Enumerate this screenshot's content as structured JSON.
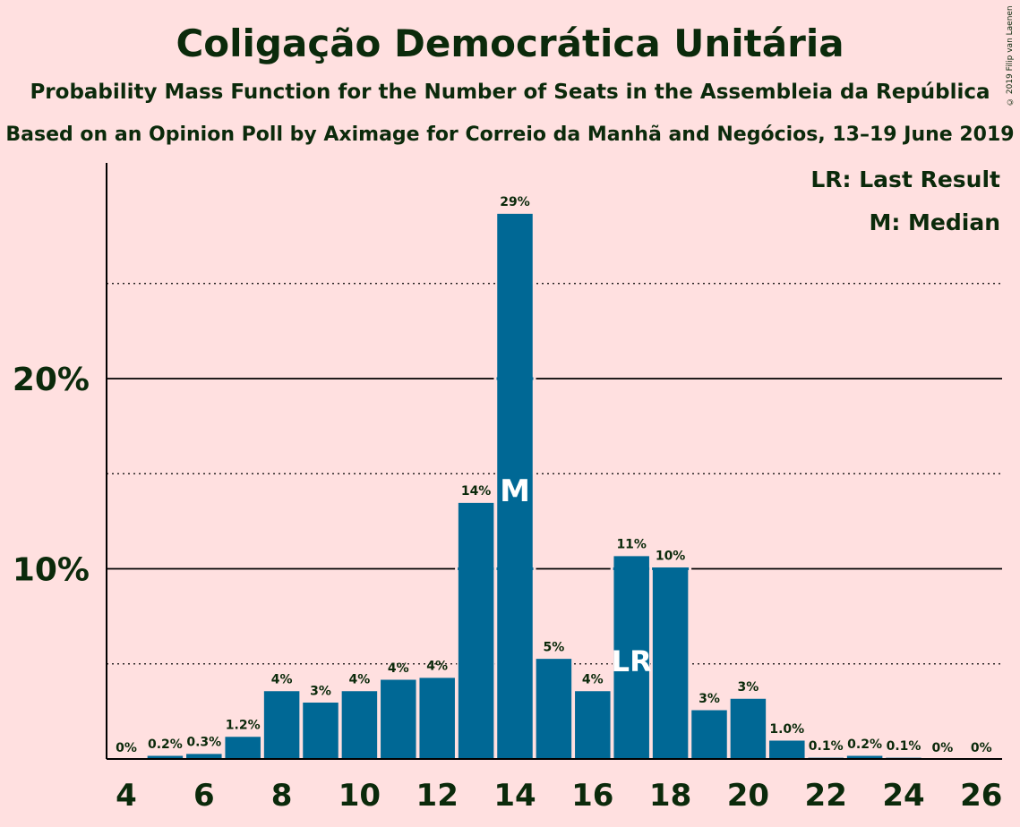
{
  "title": "Coligação Democrática Unitária",
  "subtitle": "Probability Mass Function for the Number of Seats in the Assembleia da República",
  "subtitle2": "Based on an Opinion Poll by Aximage for Correio da Manhã and Negócios, 13–19 June 2019",
  "copyright": "© 2019 Filip van Laenen",
  "legend": {
    "last_result": "LR: Last Result",
    "median": "M: Median"
  },
  "colors": {
    "background": "#ffe0e0",
    "bar": "#006895",
    "text": "#0b2a0b"
  },
  "chart_data": {
    "type": "bar",
    "x": [
      4,
      5,
      6,
      7,
      8,
      9,
      10,
      11,
      12,
      13,
      14,
      15,
      16,
      17,
      18,
      19,
      20,
      21,
      22,
      23,
      24,
      25,
      26
    ],
    "values": [
      0,
      0.2,
      0.3,
      1.2,
      3.6,
      3.0,
      3.6,
      4.2,
      4.3,
      13.5,
      28.7,
      5.3,
      3.6,
      10.7,
      10.1,
      2.6,
      3.2,
      1.0,
      0.1,
      0.2,
      0.1,
      0,
      0
    ],
    "data_labels": [
      "0%",
      "0.2%",
      "0.3%",
      "1.2%",
      "4%",
      "3%",
      "4%",
      "4%",
      "4%",
      "14%",
      "29%",
      "5%",
      "4%",
      "11%",
      "10%",
      "3%",
      "3%",
      "1.0%",
      "0.1%",
      "0.2%",
      "0.1%",
      "0%",
      "0%"
    ],
    "x_ticks": [
      "4",
      "6",
      "8",
      "10",
      "12",
      "14",
      "16",
      "18",
      "20",
      "22",
      "24",
      "26"
    ],
    "y_ticks": [
      "10%",
      "20%"
    ],
    "ylim": [
      0,
      31
    ],
    "median": 14,
    "median_label": "M",
    "last_result": 17,
    "last_result_label": "LR",
    "grid": "solid lines at 10% and 20%, dotted lines at 5%, 15% and 25%",
    "legend_position": "top-right"
  }
}
